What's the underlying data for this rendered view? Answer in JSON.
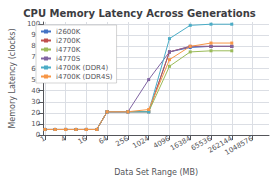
{
  "chart_data": {
    "type": "line",
    "title": "CPU Memory Latency Across Generations",
    "xlabel": "Data Set Range (MB)",
    "ylabel": "Memory Latency (clocks)",
    "x": [
      1,
      2,
      4,
      8,
      16,
      32,
      64,
      256,
      1024,
      4096,
      16384,
      65536,
      262144
    ],
    "series": [
      {
        "name": "i2600K",
        "color": "#4472C4",
        "values": [
          5,
          5,
          5,
          5,
          5,
          5,
          21,
          21,
          21,
          75,
          79,
          80,
          80
        ]
      },
      {
        "name": "i2700K",
        "color": "#C0504D",
        "values": [
          5,
          5,
          5,
          5,
          5,
          5,
          21,
          21,
          21,
          75,
          80,
          80,
          80
        ]
      },
      {
        "name": "i4770K",
        "color": "#9BBB59",
        "values": [
          5,
          5,
          5,
          5,
          5,
          5,
          21,
          21,
          21,
          62,
          75,
          76,
          76
        ]
      },
      {
        "name": "i4770S",
        "color": "#8064A2",
        "values": [
          5,
          5,
          5,
          5,
          5,
          5,
          21,
          21,
          50,
          75,
          80,
          80,
          80
        ]
      },
      {
        "name": "i4700K (DDR4)",
        "color": "#4BACC6",
        "values": [
          5,
          5,
          5,
          5,
          5,
          5,
          21,
          21,
          21,
          87,
          99,
          100,
          100
        ]
      },
      {
        "name": "i4700K (DDR4S)",
        "color": "#F79646",
        "values": [
          5,
          5,
          5,
          5,
          5,
          5,
          21,
          21,
          23,
          68,
          80,
          83,
          83
        ]
      }
    ],
    "log": "x",
    "xlim": [
      0.9,
      3145728
    ],
    "xticks": [
      1,
      4,
      16,
      64,
      256,
      1024,
      4096,
      16384,
      65536,
      262144,
      1048576
    ],
    "ylim": [
      0,
      102
    ],
    "yticks": [
      0,
      10,
      20,
      30,
      40,
      50,
      60,
      70,
      80,
      90,
      100
    ],
    "grid": true,
    "legend": "upper left",
    "marker": "square"
  }
}
